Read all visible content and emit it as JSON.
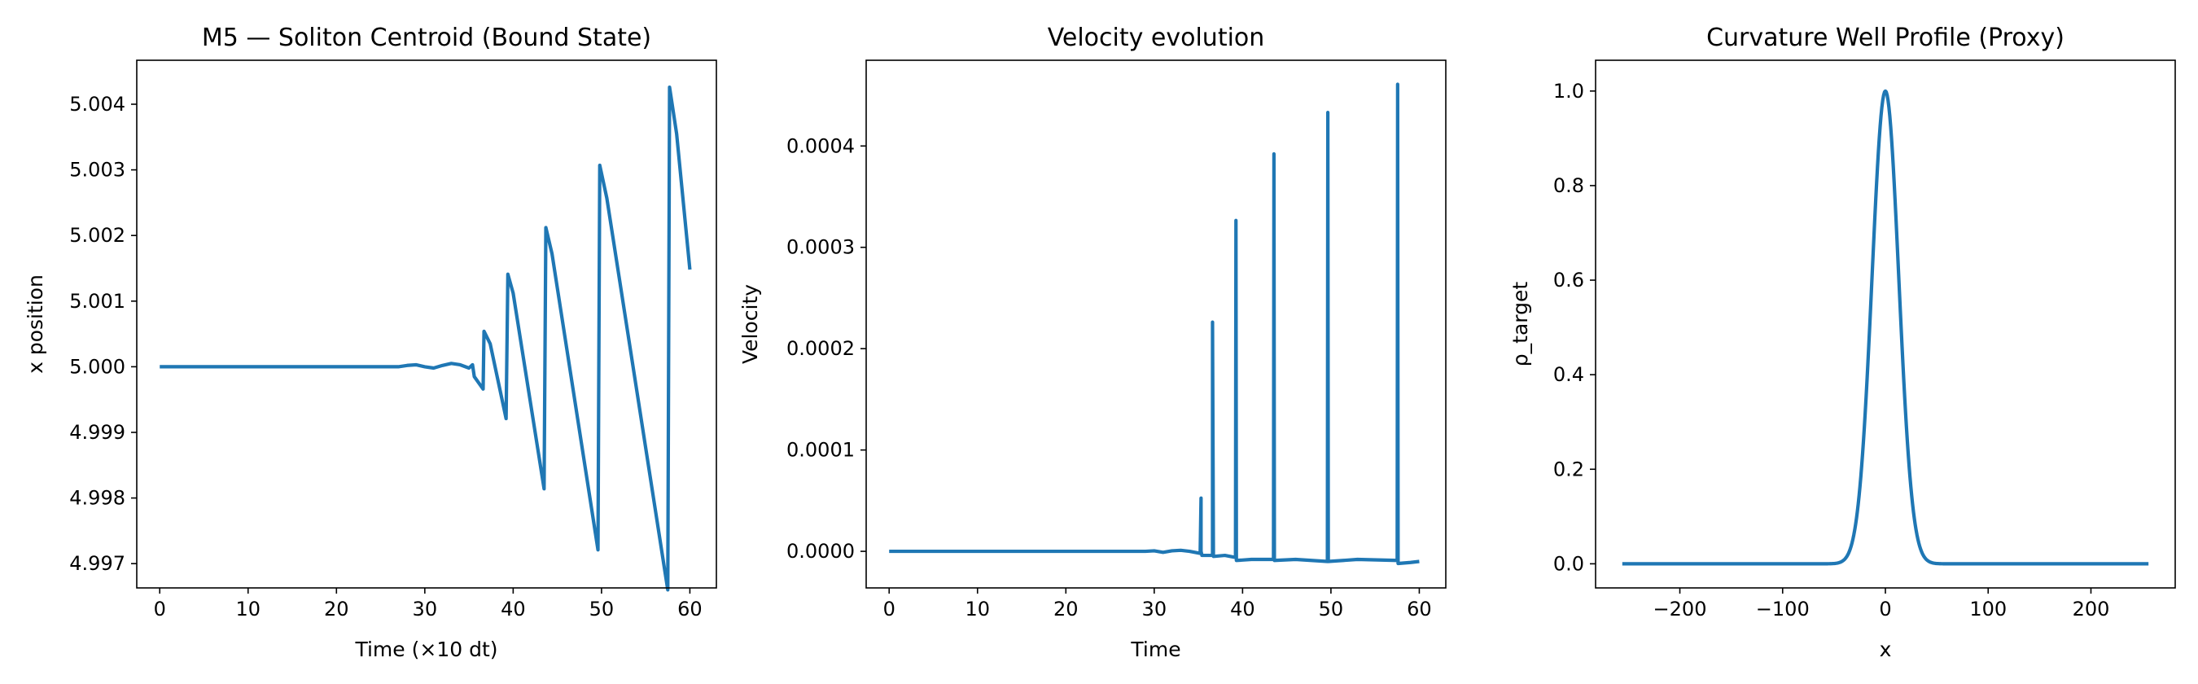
{
  "chart_data": [
    {
      "type": "line",
      "title": "M5 — Soliton Centroid (Bound State)",
      "xlabel": "Time (×10 dt)",
      "ylabel": "x position",
      "xlim": [
        -2.6,
        63.0
      ],
      "ylim": [
        4.99663,
        5.00467
      ],
      "xticks": [
        0,
        10,
        20,
        30,
        40,
        50,
        60
      ],
      "yticks": [
        4.997,
        4.998,
        4.999,
        5.0,
        5.001,
        5.002,
        5.003,
        5.004
      ],
      "ytick_labels": [
        "4.997",
        "4.998",
        "4.999",
        "5.000",
        "5.001",
        "5.002",
        "5.003",
        "5.004"
      ],
      "grid": false,
      "color": "#1f77b4",
      "series": [
        {
          "x": [
            0,
            27.0,
            28.0,
            29.0,
            30.0,
            31.0,
            32.0,
            33.0,
            34.0,
            35.0,
            35.4,
            35.6,
            36.6,
            36.7,
            37.4,
            39.2,
            39.4,
            40.0,
            43.5,
            43.7,
            44.4,
            49.6,
            49.8,
            50.6,
            57.5,
            57.7,
            58.5,
            60.0
          ],
          "y": [
            5.0,
            5.0,
            5.00002,
            5.00003,
            5.0,
            4.99998,
            5.00002,
            5.00005,
            5.00003,
            4.99998,
            5.00003,
            4.99985,
            4.99966,
            5.00054,
            5.00035,
            4.99921,
            5.00141,
            5.00112,
            4.99814,
            5.00212,
            5.00172,
            4.99721,
            5.00307,
            5.00257,
            4.9966,
            5.00426,
            5.00355,
            5.00148
          ]
        }
      ]
    },
    {
      "type": "line",
      "title": "Velocity evolution",
      "xlabel": "Time",
      "ylabel": "Velocity",
      "xlim": [
        -2.6,
        63.0
      ],
      "ylim": [
        -3.61e-05,
        0.0004846
      ],
      "xticks": [
        0,
        10,
        20,
        30,
        40,
        50,
        60
      ],
      "yticks": [
        0.0,
        0.0001,
        0.0002,
        0.0003,
        0.0004
      ],
      "ytick_labels": [
        "0.0000",
        "0.0001",
        "0.0002",
        "0.0003",
        "0.0004"
      ],
      "grid": false,
      "color": "#1f77b4",
      "series": [
        {
          "x": [
            0,
            27.0,
            28.0,
            29.0,
            30.0,
            31.0,
            32.0,
            33.0,
            34.0,
            35.2,
            35.3,
            35.3,
            35.4,
            36.6,
            36.6,
            36.7,
            38.0,
            39.2,
            39.25,
            39.3,
            41.0,
            43.5,
            43.55,
            43.6,
            46.0,
            49.6,
            49.65,
            49.7,
            53.0,
            57.5,
            57.55,
            57.6,
            59.0,
            60.0
          ],
          "y": [
            0.0,
            0.0,
            0.0,
            0.0,
            5e-07,
            -1e-06,
            5e-07,
            1e-06,
            0.0,
            -2e-06,
            5.25e-05,
            0.0,
            -4e-06,
            -4e-06,
            0.0002262,
            -5e-06,
            -4e-06,
            -6e-06,
            0.0003265,
            -9e-06,
            -8e-06,
            -8e-06,
            0.0003922,
            -9e-06,
            -8e-06,
            -1e-05,
            0.0004331,
            -1e-05,
            -8e-06,
            -9e-06,
            0.0004609,
            -1.2e-05,
            -1.1e-05,
            -1e-05
          ]
        }
      ]
    },
    {
      "type": "line",
      "title": "Curvature Well Profile (Proxy)",
      "xlabel": "x",
      "ylabel": "ρ_target",
      "xlim": [
        -282.0,
        282.0
      ],
      "ylim": [
        -0.051,
        1.0651
      ],
      "xticks": [
        -200,
        -100,
        0,
        100,
        200
      ],
      "xtick_labels": [
        "−200",
        "−100",
        "0",
        "100",
        "200"
      ],
      "yticks": [
        0.0,
        0.2,
        0.4,
        0.6,
        0.8,
        1.0
      ],
      "ytick_labels": [
        "0.0",
        "0.2",
        "0.4",
        "0.6",
        "0.8",
        "1.0"
      ],
      "grid": false,
      "color": "#1f77b4",
      "series": [
        {
          "function": "gaussian",
          "amplitude": 1.0,
          "center": 0.0,
          "sigma": 13.0,
          "x_range": [
            -256,
            256
          ]
        }
      ]
    }
  ]
}
